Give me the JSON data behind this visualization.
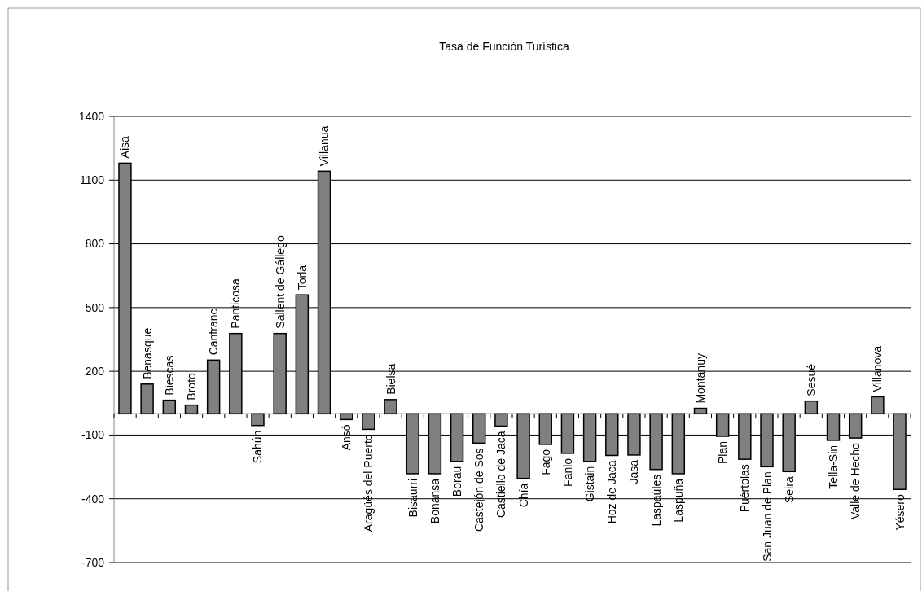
{
  "chart_data": {
    "type": "bar",
    "title": "Tasa de Función Turística",
    "categories": [
      "Aisa",
      "Benasque",
      "Biescas",
      "Broto",
      "Canfranc",
      "Panticosa",
      "Sahún",
      "Sallent de Gállego",
      "Torla",
      "Villanua",
      "Ansó",
      "Aragüés del Puerto",
      "Bielsa",
      "Bisaurri",
      "Bonansa",
      "Borau",
      "Castejón de Sos",
      "Castiello de Jaca",
      "Chía",
      "Fago",
      "Fanlo",
      "Gistain",
      "Hoz de Jaca",
      "Jasa",
      "Laspaúles",
      "Laspuña",
      "Montanuy",
      "Plan",
      "Puértolas",
      "San Juan de Plan",
      "Seira",
      "Sesué",
      "Tella-Sin",
      "Valle de Hecho",
      "Villanova",
      "Yésero"
    ],
    "values": [
      1180,
      140,
      64,
      41,
      253,
      378,
      -55,
      378,
      560,
      1142,
      -27,
      -73,
      67,
      -282,
      -282,
      -224,
      -138,
      -58,
      -304,
      -144,
      -186,
      -224,
      -196,
      -194,
      -262,
      -282,
      26,
      -106,
      -214,
      -249,
      -272,
      60,
      -125,
      -114,
      80,
      -356
    ],
    "color": "#808080",
    "ylim": [
      -700,
      1400
    ],
    "yticks": [
      -700,
      -400,
      -100,
      200,
      500,
      800,
      1100,
      1400
    ],
    "grid": "y"
  }
}
